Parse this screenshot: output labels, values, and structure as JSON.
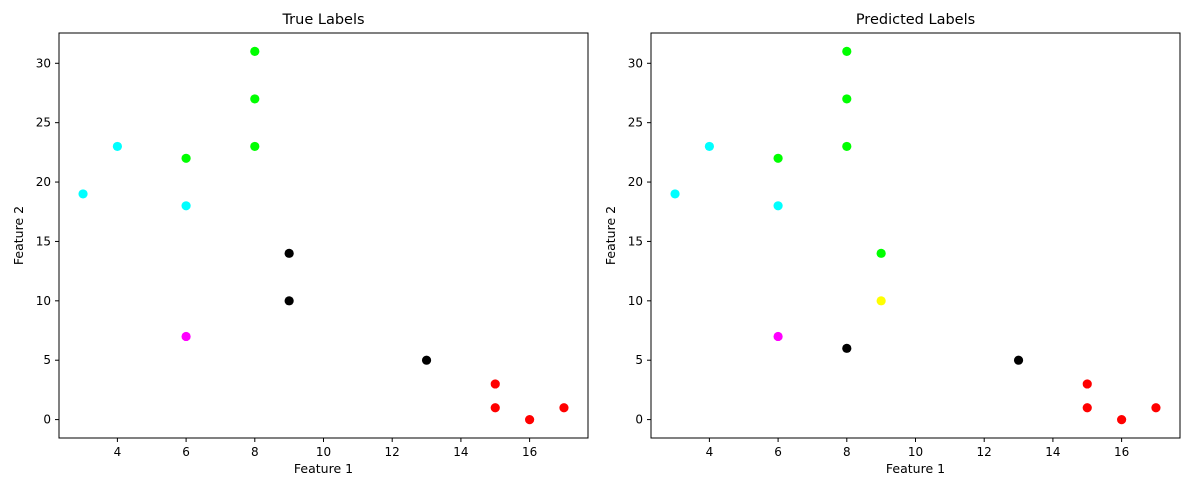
{
  "chart_data": [
    {
      "type": "scatter",
      "title": "True Labels",
      "xlabel": "Feature 1",
      "ylabel": "Feature 2",
      "xlim": [
        2.3,
        17.7
      ],
      "ylim": [
        -1.55,
        32.55
      ],
      "xticks": [
        4,
        6,
        8,
        10,
        12,
        14,
        16
      ],
      "yticks": [
        0,
        5,
        10,
        15,
        20,
        25,
        30
      ],
      "grid": false,
      "points": [
        {
          "x": 3,
          "y": 19,
          "color": "#00ffff"
        },
        {
          "x": 4,
          "y": 23,
          "color": "#00ffff"
        },
        {
          "x": 6,
          "y": 18,
          "color": "#00ffff"
        },
        {
          "x": 6,
          "y": 22,
          "color": "#00ff00"
        },
        {
          "x": 8,
          "y": 23,
          "color": "#00ff00"
        },
        {
          "x": 8,
          "y": 27,
          "color": "#00ff00"
        },
        {
          "x": 8,
          "y": 31,
          "color": "#00ff00"
        },
        {
          "x": 6,
          "y": 7,
          "color": "#ff00ff"
        },
        {
          "x": 9,
          "y": 14,
          "color": "#000000"
        },
        {
          "x": 9,
          "y": 10,
          "color": "#000000"
        },
        {
          "x": 13,
          "y": 5,
          "color": "#000000"
        },
        {
          "x": 15,
          "y": 3,
          "color": "#ff0000"
        },
        {
          "x": 15,
          "y": 1,
          "color": "#ff0000"
        },
        {
          "x": 16,
          "y": 0,
          "color": "#ff0000"
        },
        {
          "x": 17,
          "y": 1,
          "color": "#ff0000"
        }
      ]
    },
    {
      "type": "scatter",
      "title": "Predicted Labels",
      "xlabel": "Feature 1",
      "ylabel": "Feature 2",
      "xlim": [
        2.3,
        17.7
      ],
      "ylim": [
        -1.55,
        32.55
      ],
      "xticks": [
        4,
        6,
        8,
        10,
        12,
        14,
        16
      ],
      "yticks": [
        0,
        5,
        10,
        15,
        20,
        25,
        30
      ],
      "grid": false,
      "points": [
        {
          "x": 3,
          "y": 19,
          "color": "#00ffff"
        },
        {
          "x": 4,
          "y": 23,
          "color": "#00ffff"
        },
        {
          "x": 6,
          "y": 18,
          "color": "#00ffff"
        },
        {
          "x": 6,
          "y": 22,
          "color": "#00ff00"
        },
        {
          "x": 8,
          "y": 23,
          "color": "#00ff00"
        },
        {
          "x": 8,
          "y": 27,
          "color": "#00ff00"
        },
        {
          "x": 8,
          "y": 31,
          "color": "#00ff00"
        },
        {
          "x": 9,
          "y": 14,
          "color": "#00ff00"
        },
        {
          "x": 9,
          "y": 10,
          "color": "#ffff00"
        },
        {
          "x": 6,
          "y": 7,
          "color": "#ff00ff"
        },
        {
          "x": 8,
          "y": 6,
          "color": "#000000"
        },
        {
          "x": 13,
          "y": 5,
          "color": "#000000"
        },
        {
          "x": 15,
          "y": 3,
          "color": "#ff0000"
        },
        {
          "x": 15,
          "y": 1,
          "color": "#ff0000"
        },
        {
          "x": 16,
          "y": 0,
          "color": "#ff0000"
        },
        {
          "x": 17,
          "y": 1,
          "color": "#ff0000"
        }
      ]
    }
  ]
}
